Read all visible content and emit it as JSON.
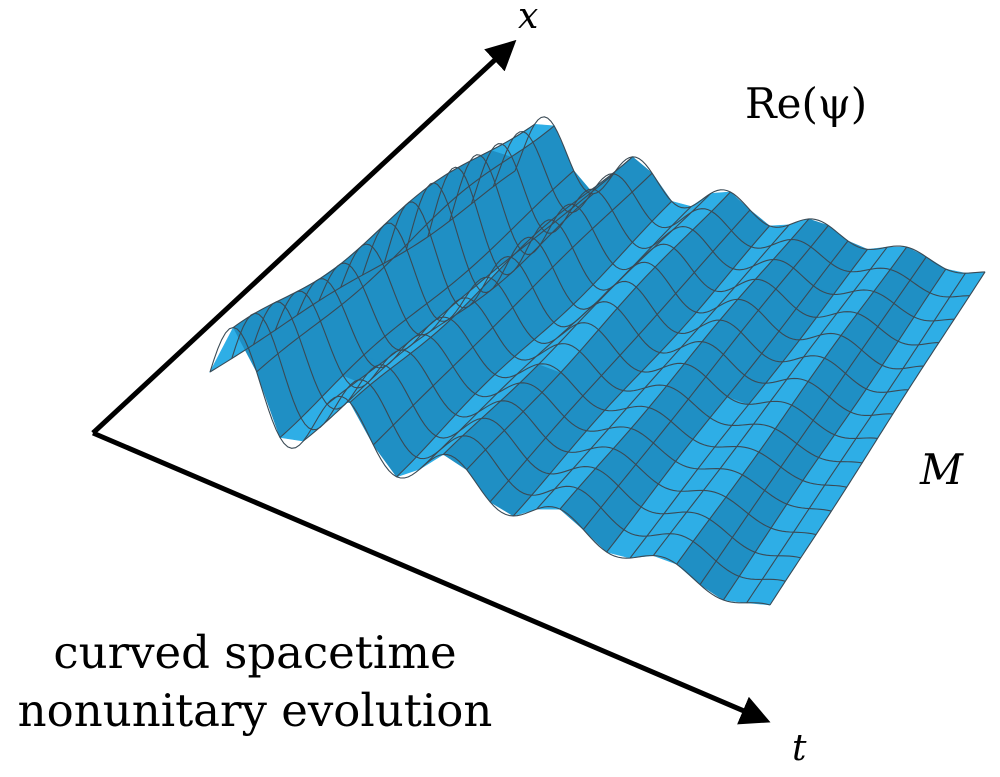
{
  "labels": {
    "x_axis": "x",
    "t_axis": "t",
    "field": "Re(ψ)",
    "manifold": "M"
  },
  "caption": {
    "line1": "curved spacetime",
    "line2": "nonunitary evolution"
  },
  "colors": {
    "surface": "#2eaee6",
    "surface_dark": "#1f8fc4",
    "mesh": "#3a4a55",
    "axes": "#000000"
  }
}
